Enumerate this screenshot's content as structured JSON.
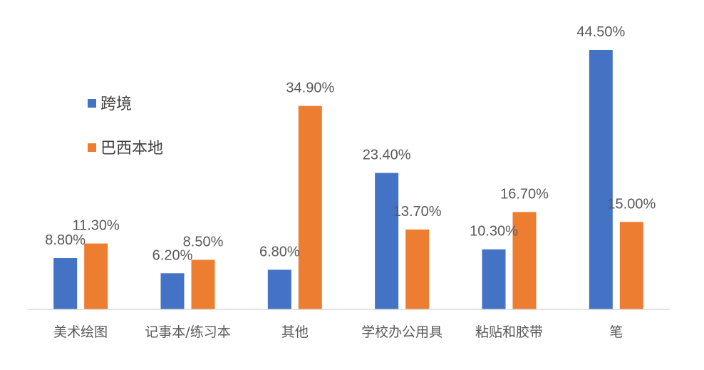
{
  "chart_data": {
    "type": "bar",
    "title": "",
    "xlabel": "",
    "ylabel": "",
    "ylim": [
      0,
      50
    ],
    "grid": false,
    "legend_position": "left",
    "categories": [
      "美术绘图",
      "记事本/练习本",
      "其他",
      "学校办公用具",
      "粘贴和胶带",
      "笔"
    ],
    "series": [
      {
        "name": "跨境",
        "color": "#4472C4",
        "values": [
          8.8,
          6.2,
          6.8,
          23.4,
          10.3,
          44.5
        ],
        "labels": [
          "8.80%",
          "6.20%",
          "6.80%",
          "23.40%",
          "10.30%",
          "44.50%"
        ]
      },
      {
        "name": "巴西本地",
        "color": "#ED7D31",
        "values": [
          11.3,
          8.5,
          34.9,
          13.7,
          16.7,
          15.0
        ],
        "labels": [
          "11.30%",
          "8.50%",
          "34.90%",
          "13.70%",
          "16.70%",
          "15.00%"
        ]
      }
    ]
  }
}
